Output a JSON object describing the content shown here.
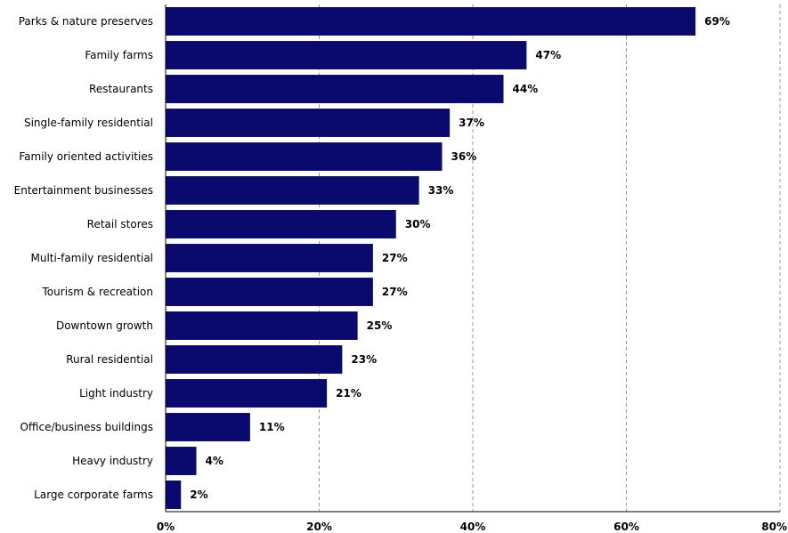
{
  "chart_data": {
    "type": "bar",
    "orientation": "horizontal",
    "categories": [
      "Parks & nature preserves",
      "Family farms",
      "Restaurants",
      "Single-family residential",
      "Family oriented activities",
      "Entertainment businesses",
      "Retail stores",
      "Multi-family residential",
      "Tourism & recreation",
      "Downtown growth",
      "Rural residential",
      "Light industry",
      "Office/business buildings",
      "Heavy industry",
      "Large corporate farms"
    ],
    "values": [
      69,
      47,
      44,
      37,
      36,
      33,
      30,
      27,
      27,
      25,
      23,
      21,
      11,
      4,
      2
    ],
    "value_labels": [
      "69%",
      "47%",
      "44%",
      "37%",
      "36%",
      "33%",
      "30%",
      "27%",
      "27%",
      "25%",
      "23%",
      "21%",
      "11%",
      "4%",
      "2%"
    ],
    "xlim": [
      0,
      80
    ],
    "xticks": [
      0,
      20,
      40,
      60,
      80
    ],
    "xtick_labels": [
      "0%",
      "20%",
      "40%",
      "60%",
      "80%"
    ],
    "grid": "vertical dashed",
    "legend": "none",
    "bar_color": "#0a0a6e",
    "grid_color": "#9a9a9a",
    "axis_color": "#000000"
  }
}
